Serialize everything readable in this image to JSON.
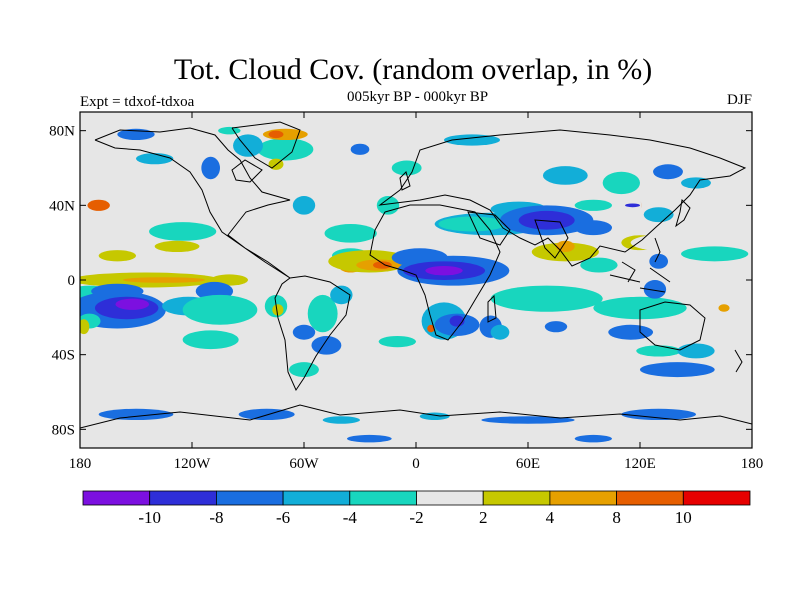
{
  "header": {
    "title": "Tot. Cloud Cov. (random overlap, in %)",
    "subtitle": "005kyr BP - 000kyr BP",
    "experiment": "Expt = tdxof-tdxoa",
    "season": "DJF"
  },
  "map": {
    "lat_ticks": [
      {
        "label": "80N",
        "lat": 80
      },
      {
        "label": "40N",
        "lat": 40
      },
      {
        "label": "0",
        "lat": 0
      },
      {
        "label": "40S",
        "lat": -40
      },
      {
        "label": "80S",
        "lat": -80
      }
    ],
    "lon_ticks": [
      {
        "label": "180",
        "lon": -180
      },
      {
        "label": "120W",
        "lon": -120
      },
      {
        "label": "60W",
        "lon": -60
      },
      {
        "label": "0",
        "lon": 0
      },
      {
        "label": "60E",
        "lon": 60
      },
      {
        "label": "120E",
        "lon": 120
      },
      {
        "label": "180",
        "lon": 180
      }
    ],
    "background_color": "#e6e6e6",
    "regions": [
      {
        "level": 8,
        "lon": -170,
        "lat": 40,
        "rlon": 6,
        "rlat": 3
      },
      {
        "level": 5,
        "lon": -160,
        "lat": 26,
        "rlon": 20,
        "rlat": 6
      },
      {
        "level": 4,
        "lon": -125,
        "lat": 26,
        "rlon": 18,
        "rlat": 5
      },
      {
        "level": 6,
        "lon": -160,
        "lat": 13,
        "rlon": 10,
        "rlat": 3
      },
      {
        "level": 6,
        "lon": -128,
        "lat": 18,
        "rlon": 12,
        "rlat": 3
      },
      {
        "level": 5,
        "lon": -175,
        "lat": -3,
        "rlon": 18,
        "rlat": 5
      },
      {
        "level": 6,
        "lon": -145,
        "lat": 0,
        "rlon": 40,
        "rlat": 4
      },
      {
        "level": 7,
        "lon": -135,
        "lat": 0,
        "rlon": 22,
        "rlat": 1.5
      },
      {
        "level": 6,
        "lon": -100,
        "lat": 0,
        "rlon": 10,
        "rlat": 3
      },
      {
        "level": 4,
        "lon": -175,
        "lat": -8,
        "rlon": 12,
        "rlat": 5
      },
      {
        "level": 2,
        "lon": -160,
        "lat": -6,
        "rlon": 14,
        "rlat": 4
      },
      {
        "level": 2,
        "lon": -160,
        "lat": -16,
        "rlon": 26,
        "rlat": 10
      },
      {
        "level": 1,
        "lon": -155,
        "lat": -15,
        "rlon": 17,
        "rlat": 6
      },
      {
        "level": 0,
        "lon": -152,
        "lat": -13,
        "rlon": 9,
        "rlat": 3
      },
      {
        "level": 3,
        "lon": -122,
        "lat": -14,
        "rlon": 14,
        "rlat": 5
      },
      {
        "level": 2,
        "lon": -108,
        "lat": -6,
        "rlon": 10,
        "rlat": 5
      },
      {
        "level": 4,
        "lon": -105,
        "lat": -16,
        "rlon": 20,
        "rlat": 8
      },
      {
        "level": 4,
        "lon": -110,
        "lat": -32,
        "rlon": 15,
        "rlat": 5
      },
      {
        "level": 4,
        "lon": -175,
        "lat": -22,
        "rlon": 6,
        "rlat": 4
      },
      {
        "level": 6,
        "lon": -178,
        "lat": -25,
        "rlon": 3,
        "rlat": 4
      },
      {
        "level": 4,
        "lon": -75,
        "lat": -14,
        "rlon": 6,
        "rlat": 6
      },
      {
        "level": 6,
        "lon": -74,
        "lat": -16,
        "rlon": 3,
        "rlat": 3
      },
      {
        "level": 4,
        "lon": -50,
        "lat": -18,
        "rlon": 8,
        "rlat": 10
      },
      {
        "level": 3,
        "lon": -40,
        "lat": -8,
        "rlon": 6,
        "rlat": 5
      },
      {
        "level": 2,
        "lon": -48,
        "lat": -35,
        "rlon": 8,
        "rlat": 5
      },
      {
        "level": 2,
        "lon": -60,
        "lat": -28,
        "rlon": 6,
        "rlat": 4
      },
      {
        "level": 4,
        "lon": -35,
        "lat": 13,
        "rlon": 10,
        "rlat": 4
      },
      {
        "level": 7,
        "lon": -35,
        "lat": 7,
        "rlon": 6,
        "rlat": 3
      },
      {
        "level": 6,
        "lon": -25,
        "lat": 10,
        "rlon": 22,
        "rlat": 6
      },
      {
        "level": 7,
        "lon": -20,
        "lat": 8,
        "rlon": 12,
        "rlat": 3
      },
      {
        "level": 8,
        "lon": -18,
        "lat": 8,
        "rlon": 5,
        "rlat": 2
      },
      {
        "level": 4,
        "lon": -35,
        "lat": 25,
        "rlon": 14,
        "rlat": 5
      },
      {
        "level": 4,
        "lon": -15,
        "lat": 40,
        "rlon": 6,
        "rlat": 5
      },
      {
        "level": 4,
        "lon": -5,
        "lat": 60,
        "rlon": 8,
        "rlat": 4
      },
      {
        "level": 3,
        "lon": -60,
        "lat": 40,
        "rlon": 6,
        "rlat": 5
      },
      {
        "level": 2,
        "lon": 2,
        "lat": 12,
        "rlon": 15,
        "rlat": 5
      },
      {
        "level": 2,
        "lon": 20,
        "lat": 5,
        "rlon": 30,
        "rlat": 8
      },
      {
        "level": 1,
        "lon": 15,
        "lat": 5,
        "rlon": 22,
        "rlat": 5
      },
      {
        "level": 0,
        "lon": 15,
        "lat": 5,
        "rlon": 10,
        "rlat": 2.5
      },
      {
        "level": 3,
        "lon": 15,
        "lat": -22,
        "rlon": 12,
        "rlat": 10
      },
      {
        "level": 2,
        "lon": 22,
        "lat": -24,
        "rlon": 12,
        "rlat": 6
      },
      {
        "level": 1,
        "lon": 22,
        "lat": -22,
        "rlon": 4,
        "rlat": 3
      },
      {
        "level": 2,
        "lon": 40,
        "lat": -25,
        "rlon": 6,
        "rlat": 6
      },
      {
        "level": 3,
        "lon": 45,
        "lat": -28,
        "rlon": 5,
        "rlat": 4
      },
      {
        "level": 8,
        "lon": 8,
        "lat": -26,
        "rlon": 2,
        "rlat": 2
      },
      {
        "level": 3,
        "lon": 40,
        "lat": 30,
        "rlon": 30,
        "rlat": 6
      },
      {
        "level": 4,
        "lon": 30,
        "lat": 30,
        "rlon": 18,
        "rlat": 4
      },
      {
        "level": 3,
        "lon": 55,
        "lat": 38,
        "rlon": 15,
        "rlat": 4
      },
      {
        "level": 2,
        "lon": 70,
        "lat": 32,
        "rlon": 25,
        "rlat": 8
      },
      {
        "level": 1,
        "lon": 70,
        "lat": 32,
        "rlon": 15,
        "rlat": 5
      },
      {
        "level": 2,
        "lon": 95,
        "lat": 28,
        "rlon": 10,
        "rlat": 4
      },
      {
        "level": 4,
        "lon": 95,
        "lat": 40,
        "rlon": 10,
        "rlat": 3
      },
      {
        "level": 5,
        "lon": 60,
        "lat": 45,
        "rlon": 15,
        "rlat": 3
      },
      {
        "level": 3,
        "lon": 80,
        "lat": 56,
        "rlon": 12,
        "rlat": 5
      },
      {
        "level": 4,
        "lon": 110,
        "lat": 52,
        "rlon": 10,
        "rlat": 6
      },
      {
        "level": 2,
        "lon": 135,
        "lat": 58,
        "rlon": 8,
        "rlat": 4
      },
      {
        "level": 3,
        "lon": 150,
        "lat": 52,
        "rlon": 8,
        "rlat": 3
      },
      {
        "level": 5,
        "lon": 95,
        "lat": 18,
        "rlon": 20,
        "rlat": 6
      },
      {
        "level": 6,
        "lon": 80,
        "lat": 15,
        "rlon": 18,
        "rlat": 5
      },
      {
        "level": 7,
        "lon": 80,
        "lat": 18,
        "rlon": 5,
        "rlat": 3
      },
      {
        "level": 6,
        "lon": 120,
        "lat": 20,
        "rlon": 10,
        "rlat": 4
      },
      {
        "level": 5,
        "lon": 140,
        "lat": 20,
        "rlon": 25,
        "rlat": 5
      },
      {
        "level": 4,
        "lon": 160,
        "lat": 14,
        "rlon": 18,
        "rlat": 4
      },
      {
        "level": 4,
        "lon": 98,
        "lat": 8,
        "rlon": 10,
        "rlat": 4
      },
      {
        "level": 8,
        "lon": 117,
        "lat": 40,
        "rlon": 4,
        "rlat": 3
      },
      {
        "level": 5,
        "lon": 115,
        "lat": 40,
        "rlon": 6,
        "rlat": 4
      },
      {
        "level": 1,
        "lon": 116,
        "lat": 40,
        "rlon": 4,
        "rlat": 1
      },
      {
        "level": 3,
        "lon": 130,
        "lat": 35,
        "rlon": 8,
        "rlat": 4
      },
      {
        "level": 2,
        "lon": 130,
        "lat": 10,
        "rlon": 5,
        "rlat": 4
      },
      {
        "level": 5,
        "lon": 60,
        "lat": -5,
        "rlon": 20,
        "rlat": 4
      },
      {
        "level": 6,
        "lon": 80,
        "lat": -10,
        "rlon": 20,
        "rlat": 4
      },
      {
        "level": 7,
        "lon": 75,
        "lat": -10,
        "rlon": 8,
        "rlat": 2
      },
      {
        "level": 4,
        "lon": 70,
        "lat": -10,
        "rlon": 30,
        "rlat": 7
      },
      {
        "level": 4,
        "lon": 120,
        "lat": -15,
        "rlon": 25,
        "rlat": 6
      },
      {
        "level": 5,
        "lon": 165,
        "lat": -15,
        "rlon": 10,
        "rlat": 4
      },
      {
        "level": 7,
        "lon": 165,
        "lat": -15,
        "rlon": 3,
        "rlat": 2
      },
      {
        "level": 2,
        "lon": 75,
        "lat": -25,
        "rlon": 6,
        "rlat": 3
      },
      {
        "level": 2,
        "lon": 115,
        "lat": -28,
        "rlon": 12,
        "rlat": 4
      },
      {
        "level": 2,
        "lon": 128,
        "lat": -5,
        "rlon": 6,
        "rlat": 5
      },
      {
        "level": 4,
        "lon": 130,
        "lat": -38,
        "rlon": 12,
        "rlat": 3
      },
      {
        "level": 3,
        "lon": 150,
        "lat": -38,
        "rlon": 10,
        "rlat": 4
      },
      {
        "level": 2,
        "lon": 140,
        "lat": -48,
        "rlon": 20,
        "rlat": 4
      },
      {
        "level": 4,
        "lon": -10,
        "lat": -33,
        "rlon": 10,
        "rlat": 3
      },
      {
        "level": 4,
        "lon": -60,
        "lat": -48,
        "rlon": 8,
        "rlat": 4
      },
      {
        "level": 5,
        "lon": -55,
        "lat": 62,
        "rlon": 18,
        "rlat": 6
      },
      {
        "level": 4,
        "lon": -70,
        "lat": 70,
        "rlon": 15,
        "rlat": 6
      },
      {
        "level": 7,
        "lon": -70,
        "lat": 78,
        "rlon": 12,
        "rlat": 3
      },
      {
        "level": 8,
        "lon": -75,
        "lat": 78,
        "rlon": 4,
        "rlat": 2
      },
      {
        "level": 3,
        "lon": -90,
        "lat": 72,
        "rlon": 8,
        "rlat": 6
      },
      {
        "level": 6,
        "lon": -75,
        "lat": 62,
        "rlon": 4,
        "rlat": 3
      },
      {
        "level": 2,
        "lon": -110,
        "lat": 60,
        "rlon": 5,
        "rlat": 6
      },
      {
        "level": 2,
        "lon": -30,
        "lat": 70,
        "rlon": 5,
        "rlat": 3
      },
      {
        "level": 4,
        "lon": -100,
        "lat": 80,
        "rlon": 6,
        "rlat": 2
      },
      {
        "level": 2,
        "lon": -150,
        "lat": 78,
        "rlon": 10,
        "rlat": 3
      },
      {
        "level": 3,
        "lon": -140,
        "lat": 65,
        "rlon": 10,
        "rlat": 3
      },
      {
        "level": 3,
        "lon": 30,
        "lat": 75,
        "rlon": 15,
        "rlat": 3
      },
      {
        "level": 2,
        "lon": -150,
        "lat": -72,
        "rlon": 20,
        "rlat": 3
      },
      {
        "level": 2,
        "lon": -80,
        "lat": -72,
        "rlon": 15,
        "rlat": 3
      },
      {
        "level": 2,
        "lon": 60,
        "lat": -75,
        "rlon": 25,
        "rlat": 2
      },
      {
        "level": 2,
        "lon": 130,
        "lat": -72,
        "rlon": 20,
        "rlat": 3
      },
      {
        "level": 3,
        "lon": 10,
        "lat": -73,
        "rlon": 8,
        "rlat": 2
      },
      {
        "level": 3,
        "lon": -40,
        "lat": -75,
        "rlon": 10,
        "rlat": 2
      },
      {
        "level": 2,
        "lon": -25,
        "lat": -85,
        "rlon": 12,
        "rlat": 2
      },
      {
        "level": 2,
        "lon": 95,
        "lat": -85,
        "rlon": 10,
        "rlat": 2
      }
    ]
  },
  "colorbar": {
    "colors": [
      "#7c10e0",
      "#2e2ed8",
      "#1a6ee0",
      "#12aed8",
      "#18d6be",
      "#e6e6e6",
      "#c6c800",
      "#e6a000",
      "#e65e00",
      "#e60000"
    ],
    "labels": [
      "-10",
      "-8",
      "-6",
      "-4",
      "-2",
      "2",
      "4",
      "8",
      "10"
    ]
  }
}
